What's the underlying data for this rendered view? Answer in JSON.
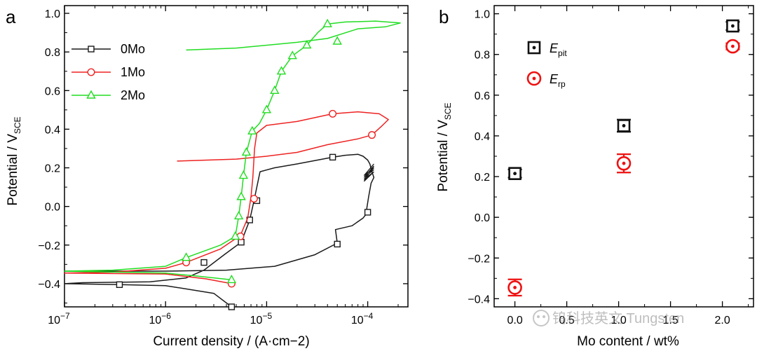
{
  "figure": {
    "watermark": "钨科技英文 Tungsten",
    "colors": {
      "0Mo": "#1a1a1a",
      "1Mo": "#ee2222",
      "2Mo": "#22dd22",
      "Epit": "#111111",
      "Erp": "#ee1111"
    }
  },
  "chart_data": [
    {
      "panel": "a",
      "type": "line",
      "xscale": "log",
      "xlabel": "Current density / (A·cm−2)",
      "ylabel": "Potential / V",
      "ylabel_sub": "SCE",
      "xlim": [
        1e-07,
        0.00025
      ],
      "ylim": [
        -0.52,
        1.04
      ],
      "xticks": [
        {
          "value": 1e-07,
          "base": "10",
          "exp": "−7"
        },
        {
          "value": 1e-06,
          "base": "10",
          "exp": "−6"
        },
        {
          "value": 1e-05,
          "base": "10",
          "exp": "−5"
        },
        {
          "value": 0.0001,
          "base": "10",
          "exp": "−4"
        }
      ],
      "yticks": [
        "−0.4",
        "−0.2",
        "0.0",
        "0.2",
        "0.4",
        "0.6",
        "0.8",
        "1.0"
      ],
      "ytick_values": [
        -0.4,
        -0.2,
        0.0,
        0.2,
        0.4,
        0.6,
        0.8,
        1.0
      ],
      "legend": {
        "placement": "upper-left"
      },
      "series": [
        {
          "name": "0Mo",
          "color": "#1a1a1a",
          "marker": "square",
          "points": [
            [
              4.5e-06,
              -0.52
            ],
            [
              3e-06,
              -0.45
            ],
            [
              1e-06,
              -0.41
            ],
            [
              3.5e-07,
              -0.405
            ],
            [
              1e-07,
              -0.4
            ],
            [
              1.5e-07,
              -0.395
            ],
            [
              7e-07,
              -0.39
            ],
            [
              1.6e-06,
              -0.37
            ],
            [
              2.4e-06,
              -0.33
            ],
            [
              3.8e-06,
              -0.25
            ],
            [
              5.6e-06,
              -0.185
            ],
            [
              6.8e-06,
              -0.07
            ],
            [
              7.5e-06,
              0.03
            ],
            [
              8e-06,
              0.1
            ],
            [
              8.6e-06,
              0.18
            ],
            [
              1.2e-05,
              0.2
            ],
            [
              2e-05,
              0.22
            ],
            [
              4.5e-05,
              0.255
            ],
            [
              6e-05,
              0.265
            ],
            [
              8e-05,
              0.27
            ],
            [
              9e-05,
              0.26
            ],
            [
              0.0001,
              0.24
            ],
            [
              0.000105,
              0.22
            ],
            [
              0.00011,
              0.18
            ],
            [
              0.000115,
              0.15
            ],
            [
              0.000108,
              0.12
            ],
            [
              0.000102,
              0.05
            ],
            [
              9.8e-05,
              -0.01
            ],
            [
              0.0001,
              -0.03
            ],
            [
              9e-05,
              -0.06
            ],
            [
              7e-05,
              -0.1
            ],
            [
              4.8e-05,
              -0.12
            ],
            [
              5e-05,
              -0.19
            ],
            [
              3e-05,
              -0.25
            ],
            [
              1.2e-05,
              -0.31
            ],
            [
              4e-06,
              -0.33
            ],
            [
              1e-06,
              -0.335
            ],
            [
              1e-07,
              -0.335
            ]
          ],
          "labeled_markers": [
            [
              4.5e-06,
              -0.52
            ],
            [
              3.5e-07,
              -0.405
            ],
            [
              2.4e-06,
              -0.29
            ],
            [
              5.6e-06,
              -0.185
            ],
            [
              6.8e-06,
              -0.07
            ],
            [
              8e-06,
              0.03
            ],
            [
              4.5e-05,
              0.255
            ],
            [
              0.0001,
              -0.03
            ],
            [
              5e-05,
              -0.195
            ]
          ]
        },
        {
          "name": "1Mo",
          "color": "#ee2222",
          "marker": "circle",
          "points": [
            [
              4.5e-06,
              -0.4
            ],
            [
              2.5e-06,
              -0.375
            ],
            [
              1e-06,
              -0.35
            ],
            [
              1e-07,
              -0.345
            ],
            [
              3e-07,
              -0.34
            ],
            [
              1e-06,
              -0.32
            ],
            [
              1.6e-06,
              -0.29
            ],
            [
              3.5e-06,
              -0.22
            ],
            [
              5.5e-06,
              -0.15
            ],
            [
              6.5e-06,
              -0.06
            ],
            [
              7e-06,
              0.05
            ],
            [
              7.3e-06,
              0.15
            ],
            [
              7.6e-06,
              0.3
            ],
            [
              8e-06,
              0.38
            ],
            [
              1e-05,
              0.42
            ],
            [
              2e-05,
              0.44
            ],
            [
              4.5e-05,
              0.48
            ],
            [
              8e-05,
              0.49
            ],
            [
              0.00013,
              0.48
            ],
            [
              0.00016,
              0.45
            ],
            [
              0.00014,
              0.42
            ],
            [
              0.00011,
              0.37
            ],
            [
              8e-05,
              0.35
            ],
            [
              4e-05,
              0.32
            ],
            [
              2e-05,
              0.28
            ],
            [
              1e-05,
              0.26
            ],
            [
              5e-06,
              0.245
            ],
            [
              1.3e-06,
              0.235
            ]
          ],
          "labeled_markers": [
            [
              4.5e-06,
              -0.4
            ],
            [
              1.6e-06,
              -0.29
            ],
            [
              5.5e-06,
              -0.155
            ],
            [
              7.5e-06,
              0.04
            ],
            [
              4.5e-05,
              0.48
            ],
            [
              0.00011,
              0.37
            ]
          ]
        },
        {
          "name": "2Mo",
          "color": "#22dd22",
          "marker": "triangle",
          "points": [
            [
              4.5e-06,
              -0.38
            ],
            [
              2e-06,
              -0.36
            ],
            [
              1e-06,
              -0.345
            ],
            [
              1e-07,
              -0.335
            ],
            [
              3e-07,
              -0.33
            ],
            [
              1e-06,
              -0.31
            ],
            [
              1.6e-06,
              -0.265
            ],
            [
              3.5e-06,
              -0.2
            ],
            [
              4.9e-06,
              -0.155
            ],
            [
              5.3e-06,
              -0.05
            ],
            [
              5.6e-06,
              0.05
            ],
            [
              5.9e-06,
              0.16
            ],
            [
              6.3e-06,
              0.28
            ],
            [
              7.2e-06,
              0.39
            ],
            [
              8.5e-06,
              0.43
            ],
            [
              1e-05,
              0.5
            ],
            [
              1.2e-05,
              0.6
            ],
            [
              1.4e-05,
              0.7
            ],
            [
              1.8e-05,
              0.78
            ],
            [
              2.5e-05,
              0.835
            ],
            [
              3.2e-05,
              0.9
            ],
            [
              4e-05,
              0.945
            ],
            [
              6e-05,
              0.955
            ],
            [
              0.00012,
              0.96
            ],
            [
              0.00021,
              0.95
            ],
            [
              0.00015,
              0.93
            ],
            [
              8e-05,
              0.92
            ],
            [
              4e-05,
              0.87
            ],
            [
              2e-05,
              0.85
            ],
            [
              5e-06,
              0.82
            ],
            [
              1.6e-06,
              0.81
            ]
          ],
          "labeled_markers": [
            [
              4.5e-06,
              -0.38
            ],
            [
              1.6e-06,
              -0.265
            ],
            [
              4.9e-06,
              -0.155
            ],
            [
              5.3e-06,
              -0.05
            ],
            [
              5.6e-06,
              0.05
            ],
            [
              5.9e-06,
              0.16
            ],
            [
              6.3e-06,
              0.28
            ],
            [
              7.2e-06,
              0.39
            ],
            [
              1e-05,
              0.5
            ],
            [
              1.2e-05,
              0.6
            ],
            [
              1.4e-05,
              0.7
            ],
            [
              1.8e-05,
              0.78
            ],
            [
              2.5e-05,
              0.835
            ],
            [
              4e-05,
              0.945
            ],
            [
              5e-05,
              0.855
            ]
          ]
        }
      ]
    },
    {
      "panel": "b",
      "type": "scatter",
      "xlabel": "Mo content / wt%",
      "ylabel": "Potential / V",
      "ylabel_sub": "SCE",
      "xlim": [
        -0.2,
        2.3
      ],
      "ylim": [
        -0.44,
        1.04
      ],
      "xticks": [
        "0.0",
        "0.5",
        "1.0",
        "1.5",
        "2.0"
      ],
      "xtick_values": [
        0.0,
        0.5,
        1.0,
        1.5,
        2.0
      ],
      "yticks": [
        "−0.4",
        "−0.2",
        "0.0",
        "0.2",
        "0.4",
        "0.6",
        "0.8",
        "1.0"
      ],
      "ytick_values": [
        -0.4,
        -0.2,
        0.0,
        0.2,
        0.4,
        0.6,
        0.8,
        1.0
      ],
      "legend": {
        "placement": "upper-left"
      },
      "series": [
        {
          "name": "E",
          "sub": "pit",
          "color": "#111111",
          "marker": "boxed-dot",
          "x": [
            0.0,
            1.05,
            2.1
          ],
          "y": [
            0.215,
            0.45,
            0.94
          ],
          "err": [
            0.02,
            0.03,
            0.02
          ]
        },
        {
          "name": "E",
          "sub": "rp",
          "color": "#ee1111",
          "marker": "ringed-dot",
          "x": [
            0.0,
            1.05,
            2.1
          ],
          "y": [
            -0.345,
            0.265,
            0.84
          ],
          "err": [
            0.04,
            0.045,
            0.015
          ]
        }
      ]
    }
  ]
}
